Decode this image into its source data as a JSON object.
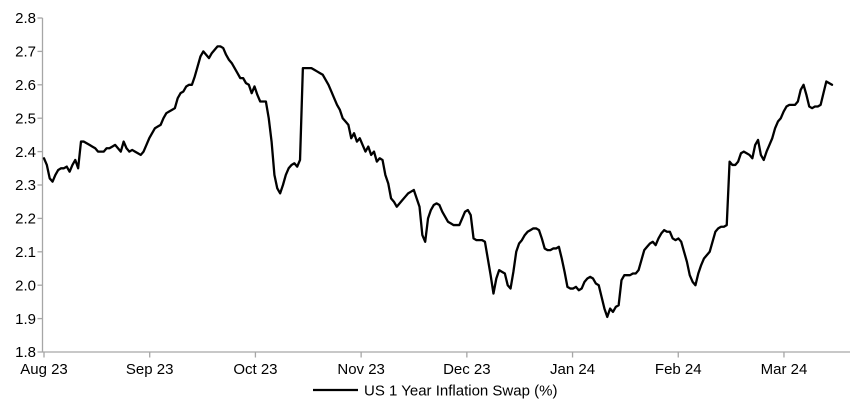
{
  "chart_data": {
    "type": "line",
    "title": "",
    "legend_position": "bottom-center",
    "grid": false,
    "background_color": "#ffffff",
    "axis_color": "#a6a6a6",
    "text_color": "#000000",
    "x_axis": {
      "tick_labels": [
        "Aug 23",
        "Sep 23",
        "Oct 23",
        "Nov 23",
        "Dec 23",
        "Jan 24",
        "Feb 24",
        "Mar 24"
      ],
      "unit": "month",
      "note": "daily observations, evenly spaced, Aug 2023 through mid-Mar 2024"
    },
    "y_axis": {
      "min": 1.8,
      "max": 2.8,
      "step": 0.1,
      "tick_labels": [
        "1.8",
        "1.9",
        "2.0",
        "2.1",
        "2.2",
        "2.3",
        "2.4",
        "2.5",
        "2.6",
        "2.7",
        "2.8"
      ]
    },
    "series": [
      {
        "name": "US 1 Year Inflation Swap (%)",
        "color": "#000000",
        "values": [
          2.38,
          2.36,
          2.32,
          2.31,
          2.33,
          2.345,
          2.35,
          2.35,
          2.355,
          2.34,
          2.36,
          2.375,
          2.35,
          2.43,
          2.43,
          2.425,
          2.42,
          2.415,
          2.41,
          2.4,
          2.4,
          2.4,
          2.41,
          2.41,
          2.415,
          2.42,
          2.41,
          2.4,
          2.43,
          2.41,
          2.4,
          2.405,
          2.4,
          2.395,
          2.39,
          2.4,
          2.42,
          2.44,
          2.455,
          2.47,
          2.475,
          2.48,
          2.5,
          2.515,
          2.52,
          2.525,
          2.53,
          2.56,
          2.575,
          2.58,
          2.595,
          2.6,
          2.6,
          2.625,
          2.655,
          2.685,
          2.7,
          2.69,
          2.68,
          2.695,
          2.705,
          2.715,
          2.715,
          2.71,
          2.69,
          2.675,
          2.665,
          2.65,
          2.635,
          2.62,
          2.62,
          2.605,
          2.6,
          2.575,
          2.595,
          2.57,
          2.55,
          2.55,
          2.55,
          2.5,
          2.43,
          2.33,
          2.29,
          2.275,
          2.3,
          2.33,
          2.35,
          2.36,
          2.365,
          2.355,
          2.375,
          2.65,
          2.65,
          2.65,
          2.65,
          2.645,
          2.64,
          2.635,
          2.63,
          2.615,
          2.6,
          2.58,
          2.56,
          2.54,
          2.525,
          2.5,
          2.49,
          2.48,
          2.44,
          2.455,
          2.43,
          2.44,
          2.42,
          2.4,
          2.415,
          2.39,
          2.4,
          2.37,
          2.38,
          2.375,
          2.33,
          2.305,
          2.26,
          2.25,
          2.235,
          2.245,
          2.255,
          2.265,
          2.275,
          2.28,
          2.285,
          2.26,
          2.235,
          2.15,
          2.13,
          2.2,
          2.225,
          2.24,
          2.245,
          2.24,
          2.22,
          2.205,
          2.19,
          2.185,
          2.18,
          2.18,
          2.18,
          2.2,
          2.22,
          2.225,
          2.21,
          2.14,
          2.135,
          2.135,
          2.135,
          2.13,
          2.08,
          2.03,
          1.975,
          2.02,
          2.045,
          2.04,
          2.035,
          2.0,
          1.99,
          2.04,
          2.1,
          2.125,
          2.135,
          2.15,
          2.16,
          2.165,
          2.17,
          2.17,
          2.165,
          2.14,
          2.11,
          2.105,
          2.105,
          2.11,
          2.11,
          2.115,
          2.08,
          2.04,
          1.995,
          1.99,
          1.99,
          1.995,
          1.985,
          1.99,
          2.01,
          2.02,
          2.025,
          2.02,
          2.005,
          2.0,
          1.965,
          1.93,
          1.905,
          1.93,
          1.92,
          1.935,
          1.94,
          2.015,
          2.03,
          2.03,
          2.03,
          2.035,
          2.035,
          2.045,
          2.075,
          2.105,
          2.115,
          2.125,
          2.13,
          2.12,
          2.14,
          2.155,
          2.165,
          2.16,
          2.16,
          2.14,
          2.135,
          2.14,
          2.13,
          2.1,
          2.07,
          2.03,
          2.01,
          2.0,
          2.035,
          2.06,
          2.08,
          2.09,
          2.1,
          2.13,
          2.16,
          2.17,
          2.175,
          2.175,
          2.18,
          2.37,
          2.36,
          2.36,
          2.37,
          2.395,
          2.4,
          2.395,
          2.39,
          2.38,
          2.42,
          2.435,
          2.39,
          2.375,
          2.4,
          2.42,
          2.44,
          2.47,
          2.49,
          2.5,
          2.52,
          2.535,
          2.54,
          2.54,
          2.54,
          2.55,
          2.585,
          2.6,
          2.57,
          2.535,
          2.53,
          2.535,
          2.535,
          2.54,
          2.575,
          2.61,
          2.605,
          2.6
        ]
      }
    ]
  }
}
